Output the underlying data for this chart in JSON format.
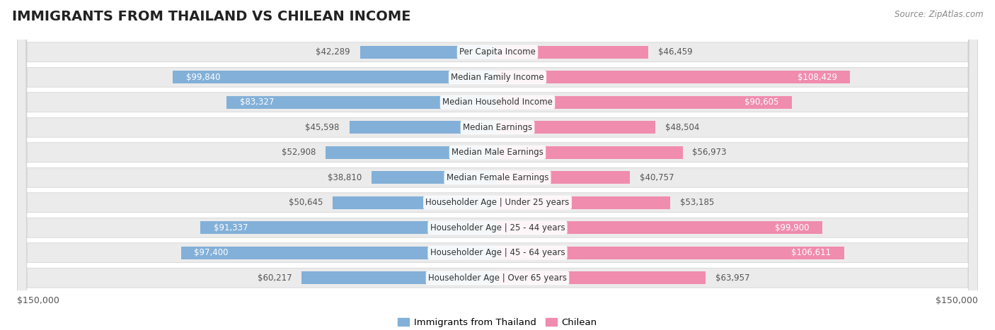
{
  "title": "IMMIGRANTS FROM THAILAND VS CHILEAN INCOME",
  "source": "Source: ZipAtlas.com",
  "categories": [
    "Per Capita Income",
    "Median Family Income",
    "Median Household Income",
    "Median Earnings",
    "Median Male Earnings",
    "Median Female Earnings",
    "Householder Age | Under 25 years",
    "Householder Age | 25 - 44 years",
    "Householder Age | 45 - 64 years",
    "Householder Age | Over 65 years"
  ],
  "thailand_values": [
    42289,
    99840,
    83327,
    45598,
    52908,
    38810,
    50645,
    91337,
    97400,
    60217
  ],
  "chilean_values": [
    46459,
    108429,
    90605,
    48504,
    56973,
    40757,
    53185,
    99900,
    106611,
    63957
  ],
  "max_value": 150000,
  "thailand_color": "#82b0d8",
  "chilean_color": "#f08cae",
  "high_threshold": 70000,
  "background_color": "#ffffff",
  "row_bg_color": "#ebebeb",
  "legend_thailand": "Immigrants from Thailand",
  "legend_chilean": "Chilean",
  "title_fontsize": 14,
  "label_fontsize": 8.5,
  "category_fontsize": 8.5
}
